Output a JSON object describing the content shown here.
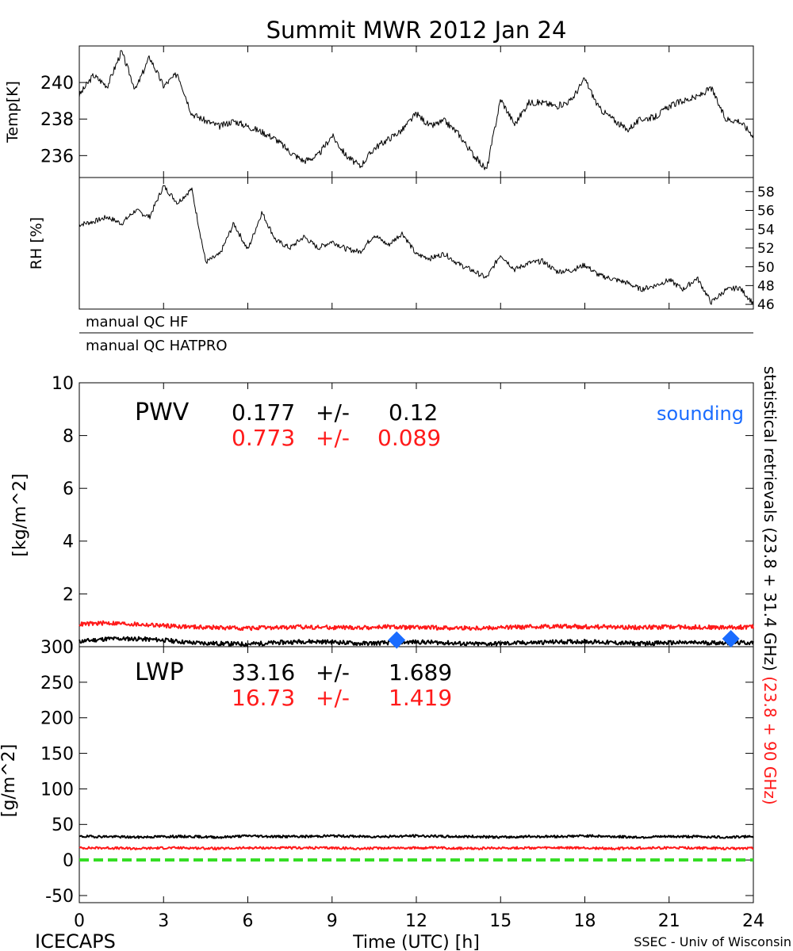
{
  "title": "Summit MWR 2012 Jan 24",
  "footer": {
    "left": "ICECAPS",
    "center": "Time (UTC) [h]",
    "right": "SSEC - Univ of Wisconsin"
  },
  "colors": {
    "black_series": "#000000",
    "red_series": "#ff1a1a",
    "sounding": "#1a6cff",
    "zero_line": "#33dd22"
  },
  "qc_labels": [
    "manual QC HF",
    "manual QC HATPRO"
  ],
  "side_label": {
    "black_part": "statistical retrievals (23.8 + 31.4 GHz)",
    "red_part": "(23.8 + 90 GHz)"
  },
  "chart_data": [
    {
      "type": "line",
      "name": "temp",
      "ylabel": "Temp[K]",
      "ylim": [
        234.8,
        242
      ],
      "yticks": [
        236,
        238,
        240
      ],
      "xlim": [
        0,
        24
      ],
      "series": [
        {
          "color": "#000000",
          "x": [
            0,
            0.5,
            1,
            1.5,
            2,
            2.5,
            3,
            3.5,
            4,
            4.5,
            5,
            5.5,
            6,
            6.5,
            7,
            7.5,
            8,
            8.5,
            9,
            9.5,
            10,
            10.5,
            11,
            11.5,
            12,
            12.5,
            13,
            13.5,
            14,
            14.5,
            15,
            15.5,
            16,
            16.5,
            17,
            17.5,
            18,
            18.5,
            19,
            19.5,
            20,
            20.5,
            21,
            21.5,
            22,
            22.5,
            23,
            23.5,
            24
          ],
          "values": [
            239.3,
            240.4,
            239.8,
            241.7,
            239.6,
            241.4,
            239.8,
            240.5,
            238.3,
            237.9,
            237.6,
            237.9,
            237.6,
            237.3,
            236.9,
            236.2,
            235.7,
            236.0,
            237.1,
            236.0,
            235.4,
            236.4,
            236.9,
            237.4,
            238.3,
            237.6,
            237.9,
            237.2,
            236.1,
            235.2,
            239.1,
            237.7,
            238.9,
            238.9,
            238.7,
            239.0,
            240.2,
            238.6,
            238.0,
            237.4,
            238.0,
            238.1,
            238.7,
            239.0,
            239.2,
            239.7,
            238.0,
            237.9,
            237.1
          ]
        }
      ]
    },
    {
      "type": "line",
      "name": "rh",
      "ylabel": "RH [%]",
      "ylim": [
        45.5,
        59.5
      ],
      "yticks": [
        46,
        48,
        50,
        52,
        54,
        56,
        58
      ],
      "xlim": [
        0,
        24
      ],
      "series": [
        {
          "color": "#000000",
          "x": [
            0,
            0.5,
            1,
            1.5,
            2,
            2.5,
            3,
            3.5,
            4,
            4.5,
            5,
            5.5,
            6,
            6.5,
            7,
            7.5,
            8,
            8.5,
            9,
            9.5,
            10,
            10.5,
            11,
            11.5,
            12,
            12.5,
            13,
            13.5,
            14,
            14.5,
            15,
            15.5,
            16,
            16.5,
            17,
            17.5,
            18,
            18.5,
            19,
            19.5,
            20,
            20.5,
            21,
            21.5,
            22,
            22.5,
            23,
            23.5,
            24
          ],
          "values": [
            54.5,
            54.8,
            55.3,
            54.6,
            56.0,
            55.3,
            58.6,
            56.8,
            58.3,
            50.5,
            51.3,
            54.6,
            51.8,
            55.8,
            52.8,
            52.0,
            53.2,
            52.0,
            52.7,
            51.9,
            51.6,
            53.4,
            52.3,
            53.6,
            51.3,
            50.9,
            51.4,
            50.3,
            49.6,
            48.8,
            51.3,
            49.7,
            50.4,
            50.6,
            49.5,
            49.6,
            50.2,
            49.1,
            48.7,
            48.3,
            47.6,
            48.0,
            48.6,
            47.6,
            48.8,
            46.2,
            47.5,
            47.8,
            46.1
          ]
        }
      ]
    },
    {
      "type": "line",
      "name": "pwv",
      "panel_label": "PWV",
      "ylabel": "[kg/m^2]",
      "ylim": [
        0,
        10
      ],
      "yticks": [
        0,
        2,
        4,
        6,
        8,
        10
      ],
      "xlim": [
        0,
        24
      ],
      "stats": [
        {
          "color": "#000000",
          "mean": "0.177",
          "sep": "+/-",
          "std": "0.12"
        },
        {
          "color": "#ff1a1a",
          "mean": "0.773",
          "sep": "+/-",
          "std": "0.089"
        }
      ],
      "series": [
        {
          "color": "#000000",
          "x": [
            0,
            1,
            2,
            3,
            4,
            5,
            6,
            7,
            8,
            9,
            10,
            11,
            12,
            13,
            14,
            15,
            16,
            17,
            18,
            19,
            20,
            21,
            22,
            23,
            24
          ],
          "values": [
            0.2,
            0.3,
            0.3,
            0.25,
            0.15,
            0.12,
            0.1,
            0.15,
            0.2,
            0.18,
            0.12,
            0.15,
            0.18,
            0.15,
            0.1,
            0.12,
            0.15,
            0.18,
            0.2,
            0.15,
            0.12,
            0.15,
            0.15,
            0.15,
            0.15
          ]
        },
        {
          "color": "#ff1a1a",
          "x": [
            0,
            1,
            2,
            3,
            4,
            5,
            6,
            7,
            8,
            9,
            10,
            11,
            12,
            13,
            14,
            15,
            16,
            17,
            18,
            19,
            20,
            21,
            22,
            23,
            24
          ],
          "values": [
            0.85,
            0.9,
            0.85,
            0.8,
            0.75,
            0.72,
            0.7,
            0.72,
            0.75,
            0.73,
            0.72,
            0.75,
            0.72,
            0.72,
            0.7,
            0.72,
            0.75,
            0.78,
            0.76,
            0.74,
            0.73,
            0.75,
            0.74,
            0.73,
            0.75
          ]
        }
      ],
      "sounding": {
        "label": "sounding",
        "x": [
          11.3,
          23.2
        ],
        "values": [
          0.25,
          0.3
        ]
      }
    },
    {
      "type": "line",
      "name": "lwp",
      "panel_label": "LWP",
      "ylabel": "[g/m^2]",
      "ylim": [
        -60,
        300
      ],
      "yticks": [
        -50,
        0,
        50,
        100,
        150,
        200,
        250,
        300
      ],
      "xlim": [
        0,
        24
      ],
      "xticks": [
        0,
        3,
        6,
        9,
        12,
        15,
        18,
        21,
        24
      ],
      "stats": [
        {
          "color": "#000000",
          "mean": "33.16",
          "sep": "+/-",
          "std": "1.689"
        },
        {
          "color": "#ff1a1a",
          "mean": "16.73",
          "sep": "+/-",
          "std": "1.419"
        }
      ],
      "series": [
        {
          "color": "#000000",
          "x": [
            0,
            1,
            2,
            3,
            4,
            5,
            6,
            7,
            8,
            9,
            10,
            11,
            12,
            13,
            14,
            15,
            16,
            17,
            18,
            19,
            20,
            21,
            22,
            23,
            24
          ],
          "values": [
            33,
            33,
            32,
            33,
            33,
            32,
            34,
            33,
            33,
            34,
            33,
            33,
            34,
            33,
            33,
            32,
            33,
            33,
            34,
            33,
            32,
            33,
            33,
            32,
            33
          ]
        },
        {
          "color": "#ff1a1a",
          "x": [
            0,
            1,
            2,
            3,
            4,
            5,
            6,
            7,
            8,
            9,
            10,
            11,
            12,
            13,
            14,
            15,
            16,
            17,
            18,
            19,
            20,
            21,
            22,
            23,
            24
          ],
          "values": [
            17,
            17,
            16,
            17,
            17,
            16,
            17,
            17,
            17,
            17,
            16,
            17,
            17,
            17,
            16,
            17,
            17,
            17,
            17,
            16,
            17,
            17,
            17,
            16,
            17
          ]
        }
      ],
      "reference_line": {
        "value": 0,
        "color": "#33dd22",
        "style": "dashed"
      }
    }
  ]
}
